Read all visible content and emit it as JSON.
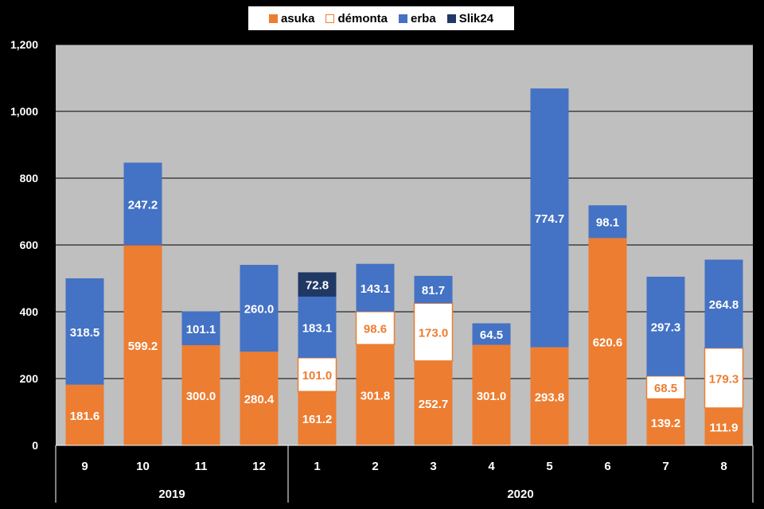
{
  "chart_data": {
    "type": "bar",
    "stacked": true,
    "categories": [
      "9",
      "10",
      "11",
      "12",
      "1",
      "2",
      "3",
      "4",
      "5",
      "6",
      "7",
      "8"
    ],
    "groups": [
      {
        "label": "2019",
        "categories": [
          "9",
          "10",
          "11",
          "12"
        ]
      },
      {
        "label": "2020",
        "categories": [
          "1",
          "2",
          "3",
          "4",
          "5",
          "6",
          "7",
          "8"
        ]
      }
    ],
    "series": [
      {
        "name": "asuka",
        "color": "#ED7D31",
        "values": [
          181.6,
          599.2,
          300.0,
          280.4,
          161.2,
          301.8,
          252.7,
          301.0,
          293.8,
          620.6,
          139.2,
          111.9
        ],
        "labels": [
          "181.6",
          "599.2",
          "300.0",
          "280.4",
          "161.2",
          "301.8",
          "252.7",
          "301.0",
          "293.8",
          "620.6",
          "139.2",
          "111.9"
        ]
      },
      {
        "name": "démonta",
        "color": "#FFFFFF",
        "values": [
          null,
          null,
          null,
          null,
          101.0,
          98.6,
          173.0,
          null,
          null,
          null,
          68.5,
          179.3
        ],
        "labels": [
          null,
          null,
          null,
          null,
          "101.0",
          "98.6",
          "173.0",
          null,
          null,
          null,
          "68.5",
          "179.3"
        ]
      },
      {
        "name": "erba",
        "color": "#4472C4",
        "values": [
          318.5,
          247.2,
          101.1,
          260.0,
          183.1,
          143.1,
          81.7,
          64.5,
          774.7,
          98.1,
          297.3,
          264.8
        ],
        "labels": [
          "318.5",
          "247.2",
          "101.1",
          "260.0",
          "183.1",
          "143.1",
          "81.7",
          "64.5",
          "774.7",
          "98.1",
          "297.3",
          "264.8"
        ]
      },
      {
        "name": "Slik24",
        "color": "#203864",
        "values": [
          null,
          null,
          null,
          null,
          72.8,
          null,
          null,
          null,
          null,
          null,
          null,
          null
        ],
        "labels": [
          null,
          null,
          null,
          null,
          "72.8",
          null,
          null,
          null,
          null,
          null,
          null,
          null
        ]
      }
    ],
    "yticks": [
      "0",
      "200",
      "400",
      "600",
      "800",
      "1,000",
      "1,200"
    ],
    "ylim": [
      0,
      1200
    ],
    "grid": true,
    "legend_position": "top-center",
    "title": "",
    "xlabel": "",
    "ylabel": ""
  }
}
